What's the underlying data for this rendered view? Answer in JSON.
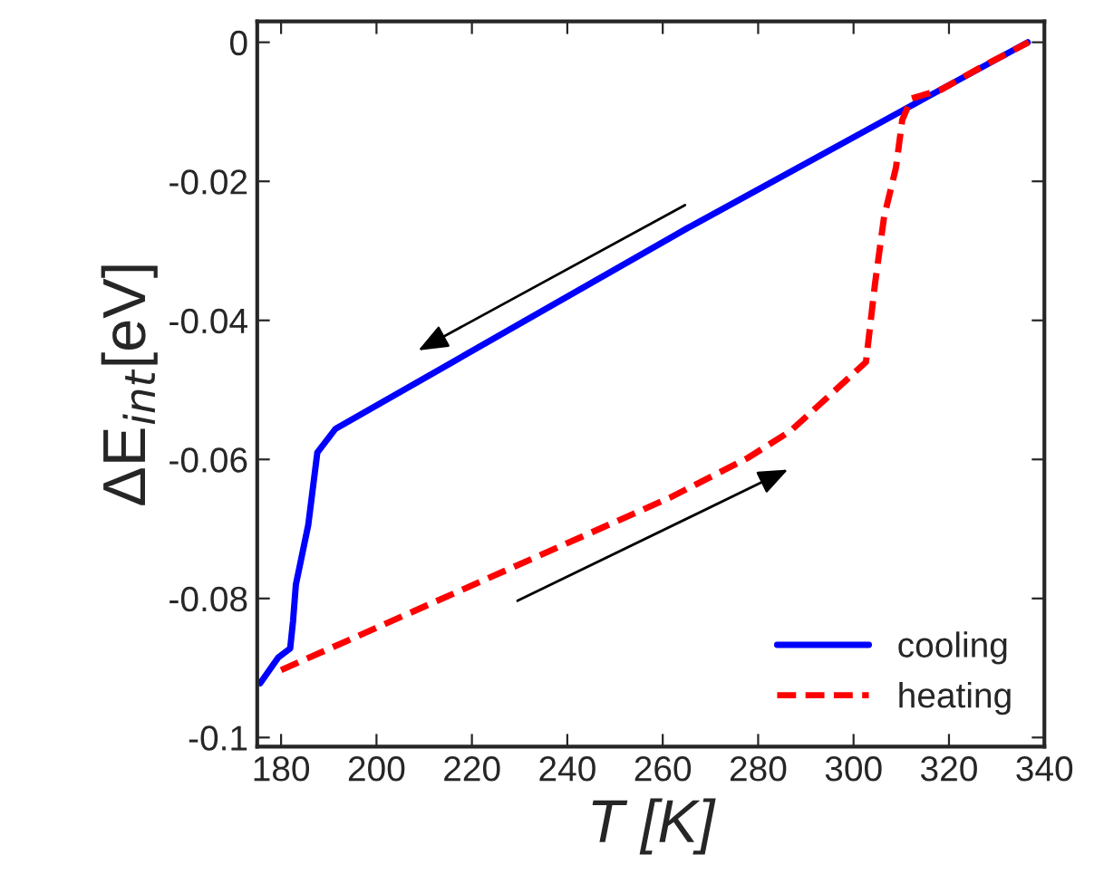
{
  "chart_data": {
    "type": "line",
    "xlabel": "T [K]",
    "ylabel": "ΔE$_{int}$[eV]",
    "xlim": [
      175,
      340
    ],
    "xticks": [
      180,
      200,
      220,
      240,
      260,
      280,
      300,
      320,
      340
    ],
    "ylim": [
      -0.1013,
      0.003
    ],
    "yticks": [
      {
        "value": -0.1,
        "label": "-0.1"
      },
      {
        "value": -0.08,
        "label": "-0.08"
      },
      {
        "value": -0.06,
        "label": "-0.06"
      },
      {
        "value": -0.04,
        "label": "-0.04"
      },
      {
        "value": -0.02,
        "label": "-0.02"
      },
      {
        "value": 0,
        "label": "0"
      }
    ],
    "grid": false,
    "legend": "bottom right",
    "series": [
      {
        "name": "cooling",
        "color": "#0000ff",
        "line_style": "solid",
        "x": [
          336.5,
          310,
          265,
          191.4,
          187.6,
          185.7,
          183.1,
          182.5,
          181.9,
          179.4,
          175.6
        ],
        "values": [
          0,
          -0.0099,
          -0.0268,
          -0.0556,
          -0.059,
          -0.0694,
          -0.078,
          -0.0833,
          -0.0872,
          -0.0885,
          -0.0922
        ]
      },
      {
        "name": "heating",
        "color": "#ff0000",
        "line_style": "dashed",
        "x": [
          180,
          261.5,
          277.8,
          286.8,
          295.6,
          302.6,
          304.5,
          306.4,
          308.9,
          310.2,
          312.1,
          318.4,
          327.2,
          336.7
        ],
        "values": [
          -0.0903,
          -0.0655,
          -0.0598,
          -0.0559,
          -0.0504,
          -0.046,
          -0.0347,
          -0.0251,
          -0.018,
          -0.0112,
          -0.0081,
          -0.0068,
          -0.0034,
          0
        ]
      }
    ]
  }
}
